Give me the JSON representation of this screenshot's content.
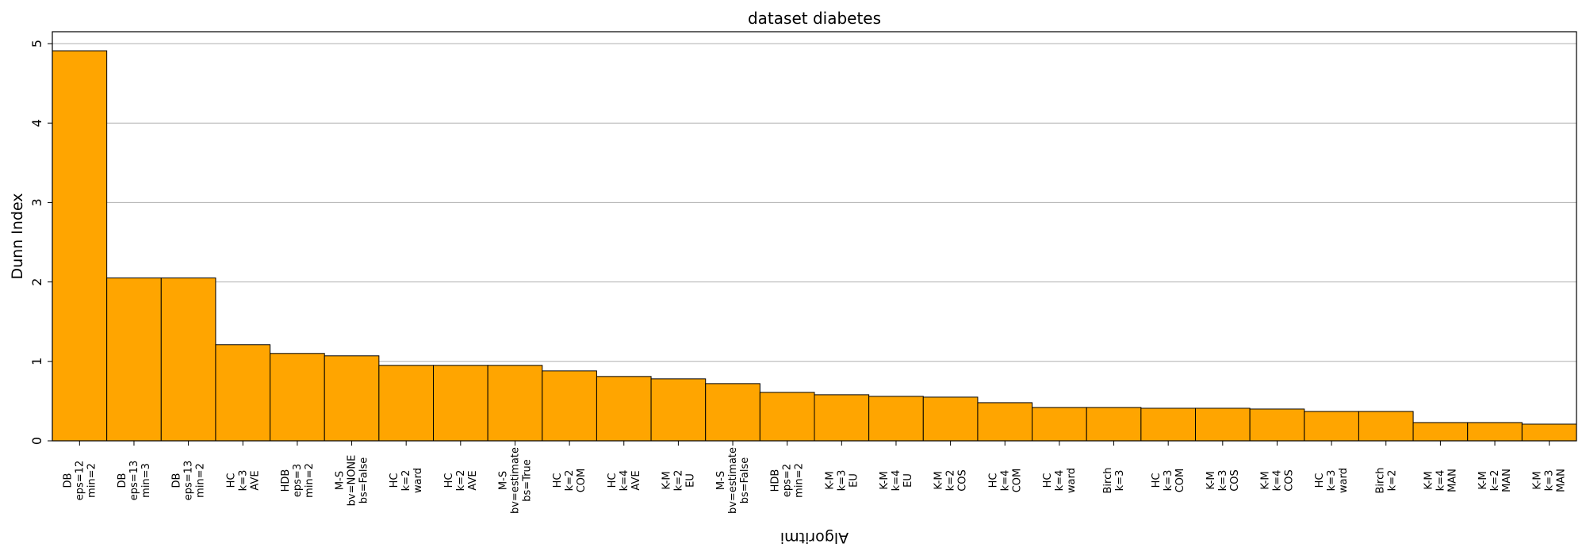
{
  "chart_data": {
    "type": "bar",
    "title": "dataset diabetes",
    "xlabel": "Algoritmi",
    "ylabel": "Dunn Index",
    "ylim": [
      0,
      5.15
    ],
    "yticks": [
      0,
      1,
      2,
      3,
      4,
      5
    ],
    "grid": "y",
    "bar_color": "#ffa500",
    "categories": [
      "DB\neps=12\nmin=2",
      "DB\neps=13\nmin=3",
      "DB\neps=13\nmin=2",
      "HC\nk=3\nAVE",
      "HDB\neps=3\nmin=2",
      "M-S\nbv=NONE\nbs=False",
      "HC\nk=2\nward",
      "HC\nk=2\nAVE",
      "M-S\nbv=estimate\nbs=True",
      "HC\nk=2\nCOM",
      "HC\nk=4\nAVE",
      "K-M\nk=2\nEU",
      "M-S\nbv=estimate\nbs=False",
      "HDB\neps=2\nmin=2",
      "K-M\nk=3\nEU",
      "K-M\nk=4\nEU",
      "K-M\nk=2\nCOS",
      "HC\nk=4\nCOM",
      "HC\nk=4\nward",
      "Birch\nk=3",
      "HC\nk=3\nCOM",
      "K-M\nk=3\nCOS",
      "K-M\nk=4\nCOS",
      "HC\nk=3\nward",
      "Birch\nk=2",
      "K-M\nk=4\nMAN",
      "K-M\nk=2\nMAN",
      "K-M\nk=3\nMAN"
    ],
    "values": [
      4.91,
      2.05,
      2.05,
      1.21,
      1.1,
      1.07,
      0.95,
      0.95,
      0.95,
      0.88,
      0.81,
      0.78,
      0.72,
      0.61,
      0.58,
      0.56,
      0.55,
      0.48,
      0.42,
      0.42,
      0.41,
      0.41,
      0.4,
      0.37,
      0.37,
      0.23,
      0.23,
      0.21
    ]
  }
}
